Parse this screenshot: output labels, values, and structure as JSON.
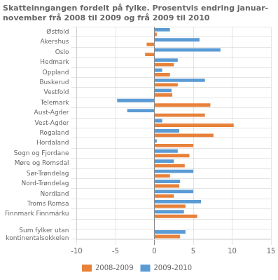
{
  "chart_data": {
    "type": "bar",
    "orientation": "horizontal",
    "title": "Skatteinngangen fordelt på fylke. Prosentvis endring januar-\nnovember frå 2008 til 2009 og frå 2009 til 2010",
    "categories": [
      "Østfold",
      "Akershus",
      "Oslo",
      "Hedmark",
      "Oppland",
      "Buskerud",
      "Vestfold",
      "Telemark",
      "Aust-Agder",
      "Vest-Agder",
      "Rogaland",
      "Hordaland",
      "Sogn og Fjordane",
      "Møre og Romsdal",
      "Sør-Trøndelag",
      "Nord-Trøndelag",
      "Nordland",
      "Troms Romsa",
      "Finnmark Finnmárku",
      null,
      "Sum fylker utan\nkontinentalsokkelen"
    ],
    "series": [
      {
        "name": "2008-2009",
        "color": "#e8813a",
        "values": [
          0.3,
          -1.0,
          -1.2,
          2.5,
          2.0,
          3.0,
          2.3,
          7.2,
          6.5,
          10.2,
          7.6,
          5.0,
          4.5,
          3.9,
          2.0,
          3.2,
          2.5,
          4.0,
          5.5,
          null,
          3.3
        ]
      },
      {
        "name": "2009-2010",
        "color": "#5b9bd5",
        "values": [
          2.0,
          5.8,
          8.5,
          3.0,
          1.0,
          6.5,
          2.2,
          -4.8,
          -3.5,
          1.0,
          3.2,
          0.3,
          3.0,
          2.5,
          5.0,
          3.3,
          5.0,
          6.0,
          3.8,
          null,
          4.0
        ]
      }
    ],
    "xlim": [
      -10,
      15
    ],
    "xticks": [
      -10,
      -5,
      0,
      5,
      10,
      15
    ],
    "grid": true,
    "legend": "bottom"
  }
}
